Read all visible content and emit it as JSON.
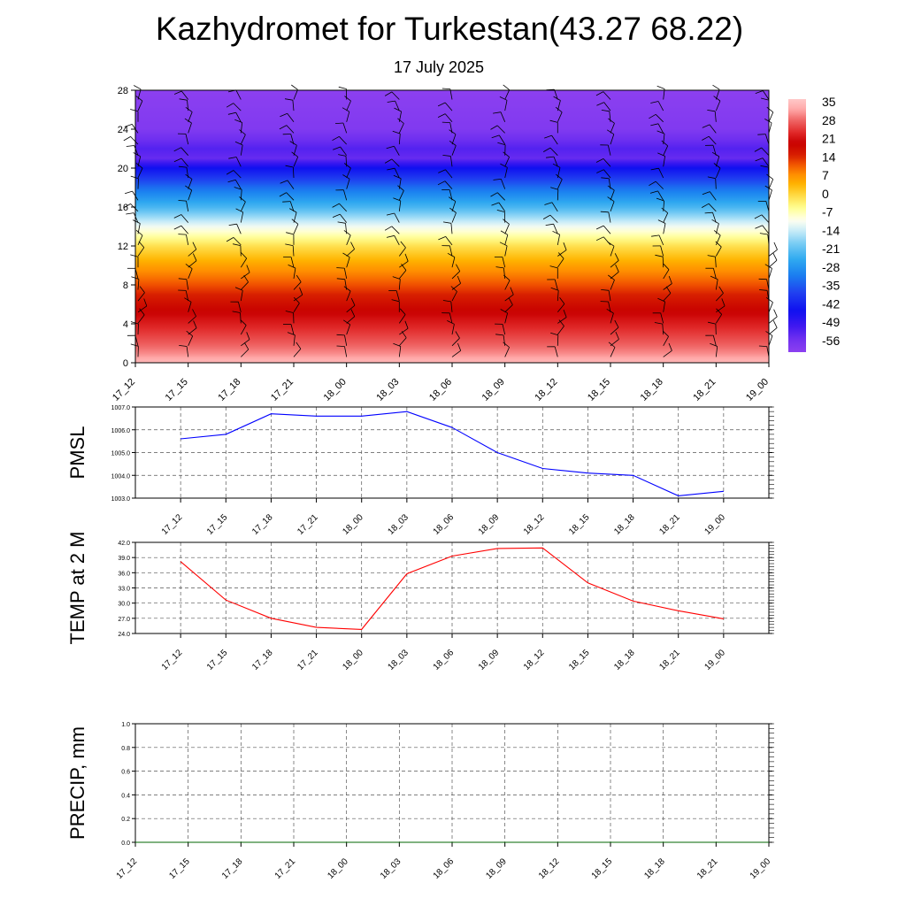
{
  "title": "Kazhydromet for Turkestan(43.27 68.22)",
  "subtitle": "17 July 2025",
  "colors": {
    "pmsl_line": "#0000ff",
    "temp_line": "#ff0000",
    "precip_line": "#006400",
    "palette_warm": [
      "#ffb8b8",
      "#f06060",
      "#e00000",
      "#c80000",
      "#e03000",
      "#ff7000",
      "#ffb000",
      "#ffe060",
      "#ffffd0"
    ],
    "palette_cold": [
      "#c0e8f8",
      "#60c0f0",
      "#20a0f0",
      "#2060f0",
      "#1010f0",
      "#6020f0",
      "#8040f0"
    ]
  },
  "chart_data": [
    {
      "type": "heatmap",
      "name": "vertical cross-section",
      "x": [
        "17_12",
        "17_15",
        "17_18",
        "17_21",
        "18_00",
        "18_03",
        "18_06",
        "18_09",
        "18_12",
        "18_15",
        "18_18",
        "18_21",
        "19_00"
      ],
      "yticks": [
        0,
        4,
        8,
        12,
        16,
        20,
        24,
        28
      ],
      "ylim": [
        0,
        28
      ],
      "colorbar": {
        "labels": [
          "35",
          "28",
          "21",
          "14",
          "7",
          "0",
          "-7",
          "-14",
          "-21",
          "-28",
          "-35",
          "-42",
          "-49",
          "-56"
        ],
        "range": [
          -60,
          38
        ]
      },
      "temperature_profile": [
        {
          "level": 0,
          "value": 36
        },
        {
          "level": 1,
          "value": 32
        },
        {
          "level": 2,
          "value": 29
        },
        {
          "level": 4,
          "value": 24
        },
        {
          "level": 6,
          "value": 19
        },
        {
          "level": 7,
          "value": 16
        },
        {
          "level": 8,
          "value": 13
        },
        {
          "level": 10,
          "value": 7
        },
        {
          "level": 12,
          "value": 0
        },
        {
          "level": 13,
          "value": -5
        },
        {
          "level": 14,
          "value": -10
        },
        {
          "level": 15,
          "value": -16
        },
        {
          "level": 16,
          "value": -22
        },
        {
          "level": 18,
          "value": -32
        },
        {
          "level": 20,
          "value": -44
        },
        {
          "level": 21,
          "value": -54
        },
        {
          "level": 22,
          "value": -52
        },
        {
          "level": 24,
          "value": -58
        },
        {
          "level": 28,
          "value": -60
        }
      ],
      "wind_barbs": "present at every time step and level"
    },
    {
      "type": "line",
      "ylabel": "PMSL",
      "x": [
        "17_12",
        "17_15",
        "17_18",
        "17_21",
        "18_00",
        "18_03",
        "18_06",
        "18_09",
        "18_12",
        "18_15",
        "18_18",
        "18_21",
        "19_00"
      ],
      "ylim": [
        1003.0,
        1007.0
      ],
      "yticks": [
        "1003.0",
        "1004.0",
        "1005.0",
        "1006.0",
        "1007.0"
      ],
      "series": [
        {
          "values": [
            1005.6,
            1005.8,
            1006.7,
            1006.6,
            1006.6,
            1006.8,
            1006.1,
            1005.0,
            1004.3,
            1004.1,
            1004.0,
            1003.1,
            1003.3
          ]
        }
      ],
      "grid": true
    },
    {
      "type": "line",
      "ylabel": "TEMP at 2 M",
      "x": [
        "17_12",
        "17_15",
        "17_18",
        "17_21",
        "18_00",
        "18_03",
        "18_06",
        "18_09",
        "18_12",
        "18_15",
        "18_18",
        "18_21",
        "19_00"
      ],
      "ylim": [
        24.0,
        42.0
      ],
      "yticks": [
        "24.0",
        "27.0",
        "30.0",
        "33.0",
        "36.0",
        "39.0",
        "42.0"
      ],
      "series": [
        {
          "values": [
            38.2,
            30.6,
            27.0,
            25.2,
            24.8,
            35.8,
            39.3,
            40.8,
            40.9,
            34.0,
            30.4,
            28.5,
            26.9
          ]
        }
      ],
      "grid": true
    },
    {
      "type": "line",
      "ylabel": "PRECIP, mm",
      "x": [
        "17_12",
        "17_15",
        "17_18",
        "17_21",
        "18_00",
        "18_03",
        "18_06",
        "18_09",
        "18_12",
        "18_15",
        "18_18",
        "18_21",
        "19_00"
      ],
      "ylim": [
        0.0,
        1.0
      ],
      "yticks": [
        "0.0",
        "0.2",
        "0.4",
        "0.6",
        "0.8",
        "1.0"
      ],
      "series": [
        {
          "values": [
            0,
            0,
            0,
            0,
            0,
            0,
            0,
            0,
            0,
            0,
            0,
            0,
            0
          ]
        }
      ],
      "grid": true
    }
  ]
}
